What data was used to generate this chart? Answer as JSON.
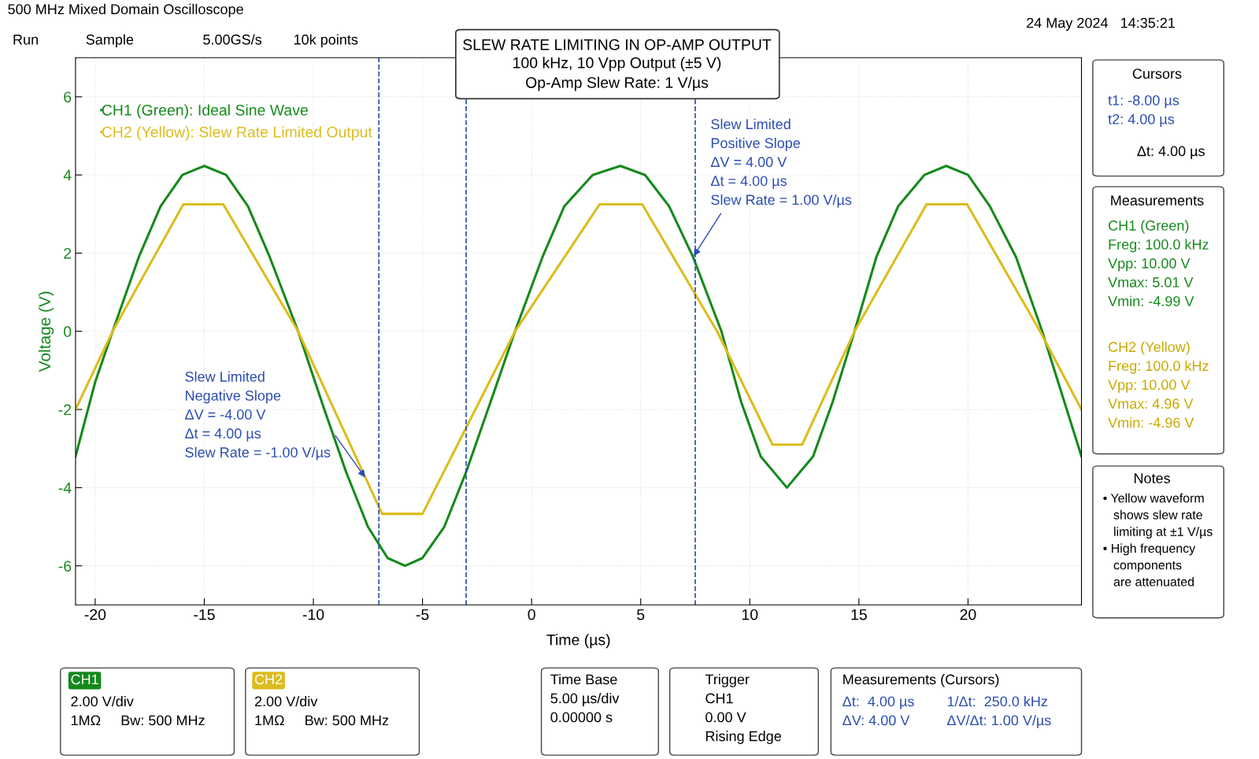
{
  "chart_data": {
    "type": "line",
    "title": "SLEW RATE LIMITING IN OP-AMP OUTPUT",
    "subtitle": "100 kHz, 10 Vpp Output (±5 V)\nOp-Amp Slew Rate: 1 V/µs",
    "xlabel": "Time (µs)",
    "ylabel": "Voltage (V)",
    "xlim": [
      -20.9,
      25.2
    ],
    "ylim": [
      -7,
      7
    ],
    "xticks": [
      -20,
      -15,
      -10,
      -5,
      0,
      5,
      10,
      15,
      20
    ],
    "yticks": [
      -6,
      -4,
      -2,
      0,
      2,
      4,
      6
    ],
    "grid": true,
    "legend": "top left",
    "line_style": "solid",
    "marker": "none",
    "series": [
      {
        "name": "CH1 (Green): Ideal Sine Wave",
        "color": "#15891c",
        "x": [
          -20.9,
          -20,
          -19.2,
          -18,
          -17,
          -16,
          -15,
          -14,
          -13,
          -12,
          -10.7,
          -9.5,
          -8.5,
          -7.5,
          -6.6,
          -5.8,
          -5,
          -4,
          -3,
          -2,
          -0.76,
          0.5,
          1.5,
          2.8,
          4.07,
          5.2,
          6.3,
          7.4,
          8.7,
          9.6,
          10.5,
          11.7,
          12.9,
          13.8,
          14.8,
          15.8,
          16.8,
          18,
          19,
          20,
          21,
          22.2,
          23.4,
          24.3,
          25.2
        ],
        "values": [
          -3.2,
          -1.3,
          0,
          1.9,
          3.2,
          4.0,
          4.23,
          4.0,
          3.2,
          1.9,
          0,
          -2.0,
          -3.6,
          -5.0,
          -5.8,
          -6.0,
          -5.8,
          -5.0,
          -3.6,
          -2.0,
          0,
          1.9,
          3.2,
          4.0,
          4.23,
          4.0,
          3.2,
          1.9,
          0,
          -1.8,
          -3.2,
          -4.0,
          -3.2,
          -1.8,
          0,
          1.9,
          3.2,
          4.0,
          4.23,
          4.0,
          3.2,
          1.9,
          0,
          -1.6,
          -3.2
        ]
      },
      {
        "name": "CH2 (Yellow): Slew Rate Limited Output",
        "color": "#dcbc1e",
        "x": [
          -20.9,
          -19.2,
          -15.96,
          -14.13,
          -10.7,
          -6.85,
          -5.0,
          -0.76,
          3.12,
          5.07,
          8.5,
          11.04,
          12.4,
          14.8,
          18.1,
          19.96,
          23.3,
          25.2
        ],
        "values": [
          -2.0,
          0,
          3.25,
          3.25,
          0,
          -4.67,
          -4.67,
          0,
          3.25,
          3.25,
          0,
          -2.9,
          -2.9,
          0,
          3.25,
          3.25,
          0,
          -2.0
        ]
      }
    ],
    "ref_lines": [
      {
        "axis": "x",
        "value": -7.0,
        "color": "#2a4db0",
        "line_style": "dashed"
      },
      {
        "axis": "x",
        "value": -3.0,
        "color": "#2a4db0",
        "line_style": "dashed"
      },
      {
        "axis": "x",
        "value": 7.5,
        "color": "#2a4db0",
        "line_style": "dashed"
      }
    ],
    "annotations": [
      "500 MHz Mixed Domain Oscilloscope",
      "Run",
      "Sample",
      "5.00GS/s",
      "10k points",
      "24 May 2024   14:35:21",
      "Cursors",
      "t1: -8.00 µs\nt2: 4.00 µs",
      "Δt: 4.00 µs",
      "Measurements",
      "CH1 (Green)\nFreg: 100.0 kHz\nVpp: 10.00 V\nVmax: 5.01 V\nVmin: -4.99 V",
      "CH2 (Yellow)\nFreg: 100.0 kHz\nVpp: 10.00 V\nVmax: 4.96 V\nVmin: -4.96 V",
      "Notes",
      "• Yellow waveform\n   shows slew rate\n   limiting at ±1 V/µs\n• High frequency\n   components\n   are attenuated",
      "CH1",
      "2.00 V/div\n1MΩ     Bw: 500 MHz",
      "CH2",
      "2.00 V/div\n1MΩ     Bw: 500 MHz",
      "Time Base\n5.00 µs/div\n0.00000 s",
      "Trigger\nCH1\n0.00 V\nRising Edge",
      "Measurements (Cursors)",
      "Δt:  4.00 µs\nΔV: 4.00 V",
      "1/Δt:  250.0 kHz\nΔV/Δt: 1.00 V/µs",
      {
        "text": "Slew Limited\nNegative Slope\nΔV = -4.00 V\nΔt = 4.00 µs\nSlew Rate = -1.00 V/µs",
        "x": -7.6,
        "y": -3.76
      },
      {
        "text": "Slew Limited\nPositive Slope\nΔV = 4.00 V\nΔt = 4.00 µs\nSlew Rate = 1.00 V/µs",
        "x": 7.4,
        "y": 1.9
      }
    ]
  }
}
